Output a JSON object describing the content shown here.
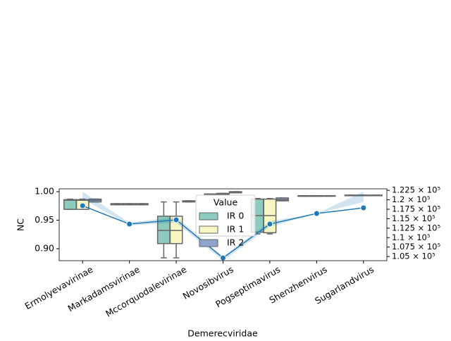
{
  "chart_data": {
    "type": "box",
    "x_label": "Demerecviridae",
    "y_label": "NC",
    "categories": [
      "Ermolyevavirinae",
      "Markadamsvirinae",
      "Mccorquodalevirinae",
      "Novosibvirus",
      "Pogseptimavirus",
      "Shenzhenvirus",
      "Sugarlandvirus"
    ],
    "ylim": [
      0.879,
      1.005
    ],
    "yticks": [
      {
        "value": 0.9,
        "label": "0.90"
      },
      {
        "value": 0.95,
        "label": "0.95"
      },
      {
        "value": 1.0,
        "label": "1.00"
      }
    ],
    "y2lim": [
      103900,
      122900
    ],
    "y2ticks": [
      {
        "value": 105000,
        "label": "1.05 × 10⁵"
      },
      {
        "value": 107500,
        "label": "1.075 × 10⁵"
      },
      {
        "value": 110000,
        "label": "1.1 × 10⁵"
      },
      {
        "value": 112500,
        "label": "1.125 × 10⁵"
      },
      {
        "value": 115000,
        "label": "1.15 × 10⁵"
      },
      {
        "value": 117500,
        "label": "1.175 × 10⁵"
      },
      {
        "value": 120000,
        "label": "1.2 × 10⁵"
      },
      {
        "value": 122500,
        "label": "1.225 × 10⁵"
      }
    ],
    "legend_title": "Value",
    "legend_position": "upper center",
    "series": [
      {
        "name": "IR 0",
        "color": "#8ccbbd",
        "boxes": [
          [
            0.969,
            0.969,
            0.985,
            0.986,
            0.987
          ],
          [
            0.977,
            0.977,
            0.978,
            0.979,
            0.979
          ],
          [
            0.884,
            0.909,
            0.932,
            0.957,
            0.982
          ],
          [
            0.994,
            0.994,
            0.995,
            0.996,
            0.996
          ],
          [
            0.926,
            0.929,
            0.958,
            0.987,
            0.988
          ],
          [
            0.992,
            0.992,
            0.992,
            0.993,
            0.993
          ],
          [
            0.993,
            0.993,
            0.993,
            0.994,
            0.994
          ]
        ]
      },
      {
        "name": "IR 1",
        "color": "#f6f7c3",
        "boxes": [
          [
            0.969,
            0.969,
            0.985,
            0.986,
            0.987
          ],
          [
            0.977,
            0.977,
            0.978,
            0.979,
            0.979
          ],
          [
            0.884,
            0.909,
            0.932,
            0.957,
            0.982
          ],
          [
            0.995,
            0.995,
            0.996,
            0.997,
            0.997
          ],
          [
            0.926,
            0.928,
            0.958,
            0.987,
            0.988
          ],
          [
            0.992,
            0.992,
            0.992,
            0.993,
            0.993
          ],
          [
            0.993,
            0.993,
            0.993,
            0.994,
            0.994
          ]
        ]
      },
      {
        "name": "IR 2",
        "color": "#8fa4cc",
        "boxes": [
          [
            0.982,
            0.982,
            0.985,
            0.987,
            0.987
          ],
          [
            0.977,
            0.977,
            0.978,
            0.979,
            0.979
          ],
          [
            0.982,
            0.982,
            0.983,
            0.984,
            0.984
          ],
          [
            0.998,
            0.998,
            0.999,
            1.0,
            1.0
          ],
          [
            0.984,
            0.984,
            0.986,
            0.989,
            0.989
          ],
          [
            0.992,
            0.992,
            0.993,
            0.993,
            0.993
          ],
          [
            0.993,
            0.993,
            0.993,
            0.994,
            0.994
          ]
        ]
      }
    ],
    "line": {
      "axis": "y2",
      "color": "#1f77b4",
      "values": [
        118430,
        113580,
        114700,
        104630,
        113580,
        116380,
        117870
      ],
      "band_lower": [
        120300,
        113210,
        113950,
        103900,
        112840,
        116380,
        119370
      ],
      "band_upper": [
        122160,
        113950,
        115450,
        105000,
        114330,
        116380,
        122160
      ]
    }
  }
}
